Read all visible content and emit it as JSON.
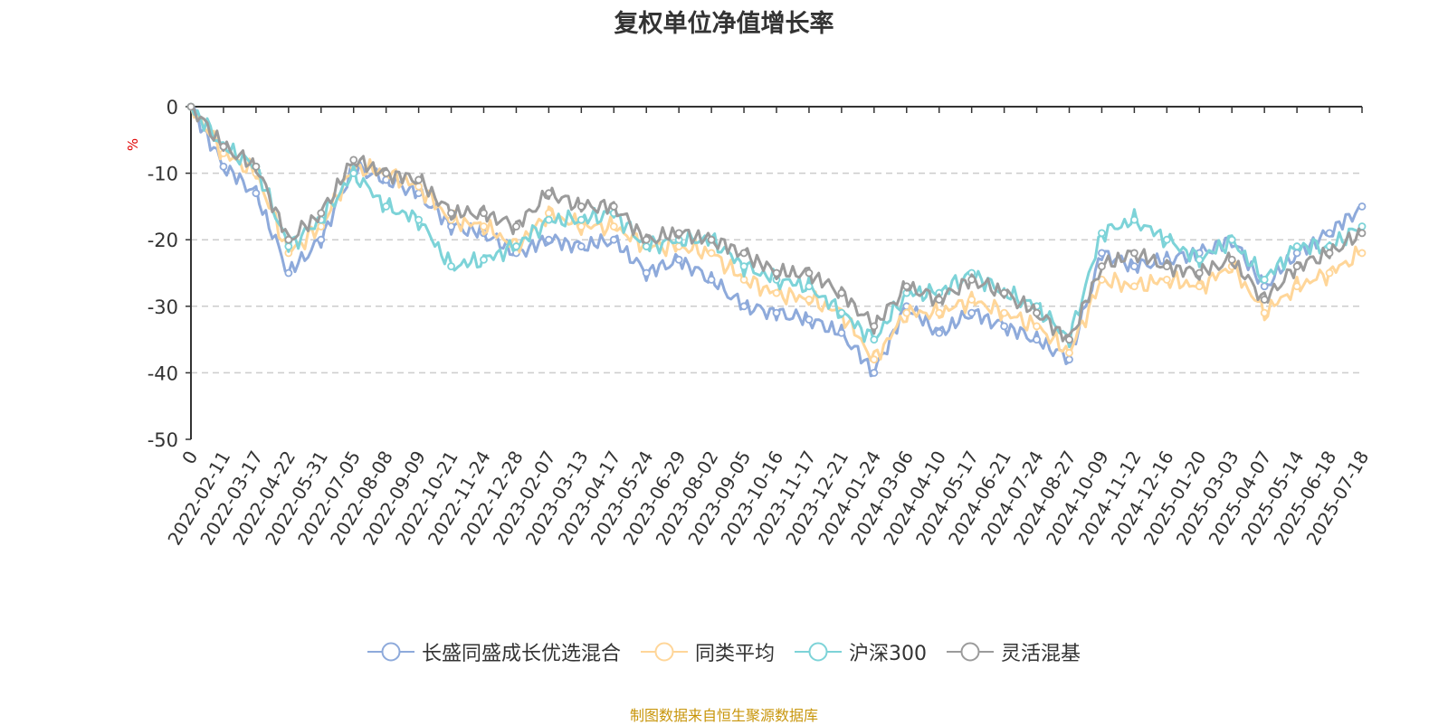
{
  "chart_data": {
    "type": "line",
    "title": "复权单位净值增长率",
    "ylabel": "%",
    "ylim": [
      -50,
      0
    ],
    "yticks": [
      0,
      -10,
      -20,
      -30,
      -40,
      -50
    ],
    "grid": true,
    "legend_position": "bottom",
    "x_ticks": [
      "0",
      "2022-02-11",
      "2022-03-17",
      "2022-04-22",
      "2022-05-31",
      "2022-07-05",
      "2022-08-08",
      "2022-09-09",
      "2022-10-21",
      "2022-11-24",
      "2022-12-28",
      "2023-02-07",
      "2023-03-13",
      "2023-04-17",
      "2023-05-24",
      "2023-06-29",
      "2023-08-02",
      "2023-09-05",
      "2023-10-16",
      "2023-11-17",
      "2023-12-21",
      "2024-01-24",
      "2024-03-06",
      "2024-04-10",
      "2024-05-17",
      "2024-06-21",
      "2024-07-24",
      "2024-08-27",
      "2024-10-09",
      "2024-11-12",
      "2024-12-16",
      "2025-01-20",
      "2025-03-03",
      "2025-04-07",
      "2025-05-14",
      "2025-06-18",
      "2025-07-18"
    ],
    "x": [
      "0",
      "2022-02-11",
      "2022-03-17",
      "2022-04-22",
      "2022-05-31",
      "2022-07-05",
      "2022-08-08",
      "2022-09-09",
      "2022-10-21",
      "2022-11-24",
      "2022-12-28",
      "2023-02-07",
      "2023-03-13",
      "2023-04-17",
      "2023-05-24",
      "2023-06-29",
      "2023-08-02",
      "2023-09-05",
      "2023-10-16",
      "2023-11-17",
      "2023-12-21",
      "2024-01-24",
      "2024-03-06",
      "2024-04-10",
      "2024-05-17",
      "2024-06-21",
      "2024-07-24",
      "2024-08-27",
      "2024-10-09",
      "2024-11-12",
      "2024-12-16",
      "2025-01-20",
      "2025-03-03",
      "2025-04-07",
      "2025-05-14",
      "2025-06-18",
      "2025-07-18"
    ],
    "series": [
      {
        "name": "长盛同盛成长优选混合",
        "color": "#8eaadb",
        "values": [
          0,
          -9,
          -13,
          -25,
          -20,
          -9,
          -11,
          -13,
          -18,
          -19,
          -22,
          -20,
          -21,
          -20,
          -25,
          -23,
          -26,
          -30,
          -31,
          -32,
          -34,
          -40,
          -30,
          -34,
          -31,
          -33,
          -35,
          -38,
          -22,
          -24,
          -23,
          -22,
          -20,
          -27,
          -22,
          -19,
          -15
        ]
      },
      {
        "name": "同类平均",
        "color": "#ffd699",
        "values": [
          0,
          -7,
          -10,
          -22,
          -18,
          -9,
          -10,
          -12,
          -17,
          -18,
          -21,
          -16,
          -18,
          -18,
          -21,
          -21,
          -22,
          -26,
          -28,
          -29,
          -31,
          -38,
          -31,
          -31,
          -29,
          -31,
          -33,
          -37,
          -26,
          -27,
          -26,
          -27,
          -24,
          -31,
          -27,
          -25,
          -22
        ]
      },
      {
        "name": "沪深300",
        "color": "#7dd3d8",
        "values": [
          0,
          -6,
          -9,
          -21,
          -17,
          -10,
          -15,
          -17,
          -24,
          -23,
          -21,
          -17,
          -17,
          -16,
          -21,
          -20,
          -20,
          -24,
          -26,
          -27,
          -31,
          -35,
          -28,
          -28,
          -25,
          -28,
          -30,
          -35,
          -19,
          -17,
          -20,
          -23,
          -20,
          -26,
          -21,
          -21,
          -18
        ]
      },
      {
        "name": "灵活混基",
        "color": "#9b9b9b",
        "values": [
          0,
          -6,
          -9,
          -20,
          -16,
          -8,
          -10,
          -11,
          -16,
          -16,
          -18,
          -13,
          -15,
          -15,
          -20,
          -19,
          -20,
          -22,
          -25,
          -25,
          -28,
          -33,
          -27,
          -29,
          -26,
          -28,
          -31,
          -35,
          -24,
          -22,
          -24,
          -25,
          -23,
          -29,
          -24,
          -22,
          -19
        ]
      }
    ]
  },
  "source_label": "制图数据来自恒生聚源数据库"
}
